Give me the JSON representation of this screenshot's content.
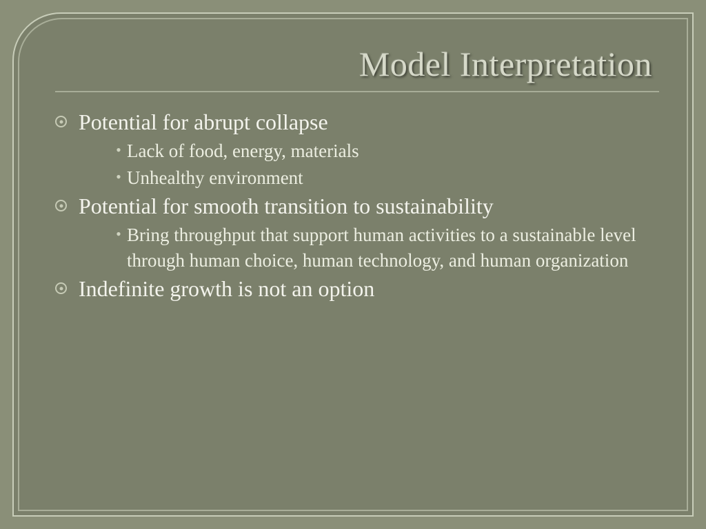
{
  "background_color": "#8a8f78",
  "panel_color": "#7b806b",
  "frame_outer_color": "#c8cdb9",
  "frame_inner_color": "#a9ae99",
  "title_color": "#d6d9c9",
  "text_color": "#f3f3ec",
  "bullet_color": "#c6cab5",
  "title": "Model Interpretation",
  "title_fontsize": 50,
  "body_fontsize_l1": 32,
  "body_fontsize_l2": 27,
  "bullets": {
    "b1": "Potential for abrupt collapse",
    "b1a": "Lack of food, energy, materials",
    "b1b": "Unhealthy environment",
    "b2": "Potential for smooth transition to sustainability",
    "b2a": "Bring throughput that support human activities to a sustainable level through human choice, human technology, and human organization",
    "b3": "Indefinite growth is not an option"
  }
}
